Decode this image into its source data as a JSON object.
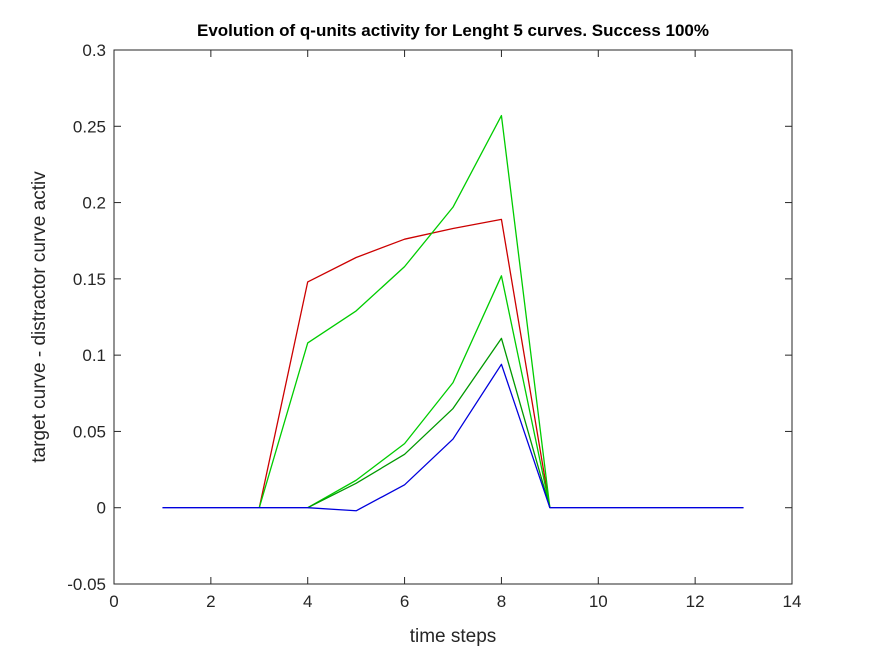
{
  "chart_data": {
    "type": "line",
    "title": "Evolution of q-units activity for Lenght 5 curves. Success 100%",
    "xlabel": "time steps",
    "ylabel": "target curve - distractor curve activ",
    "xlim": [
      0,
      14
    ],
    "ylim": [
      -0.05,
      0.3
    ],
    "xticks": [
      0,
      2,
      4,
      6,
      8,
      10,
      12,
      14
    ],
    "xtick_labels": [
      "0",
      "2",
      "4",
      "6",
      "8",
      "10",
      "12",
      "14"
    ],
    "yticks": [
      -0.05,
      0,
      0.05,
      0.1,
      0.15,
      0.2,
      0.25,
      0.3
    ],
    "ytick_labels": [
      "-0.05",
      "0",
      "0.05",
      "0.1",
      "0.15",
      "0.2",
      "0.25",
      "0.3"
    ],
    "grid": false,
    "box": true,
    "series": [
      {
        "color": "#cc0000",
        "x": [
          3,
          4,
          5,
          6,
          7,
          8,
          9
        ],
        "y": [
          0,
          0.148,
          0.164,
          0.176,
          0.183,
          0.189,
          0
        ]
      },
      {
        "color": "#00cc00",
        "x": [
          3,
          4,
          5,
          6,
          7,
          8,
          9
        ],
        "y": [
          0,
          0.108,
          0.129,
          0.158,
          0.197,
          0.257,
          0
        ]
      },
      {
        "color": "#00cc00",
        "x": [
          4,
          5,
          6,
          7,
          8,
          9
        ],
        "y": [
          0,
          0.018,
          0.042,
          0.082,
          0.152,
          0
        ]
      },
      {
        "color": "#009900",
        "x": [
          4,
          5,
          6,
          7,
          8,
          9
        ],
        "y": [
          0,
          0.016,
          0.035,
          0.065,
          0.111,
          0
        ]
      },
      {
        "color": "#0000dd",
        "x": [
          1,
          2,
          3,
          4,
          5,
          6,
          7,
          8,
          9,
          10,
          11,
          12,
          13
        ],
        "y": [
          0,
          0,
          0,
          0,
          -0.002,
          0.015,
          0.045,
          0.094,
          0,
          0,
          0,
          0,
          0
        ]
      }
    ]
  }
}
